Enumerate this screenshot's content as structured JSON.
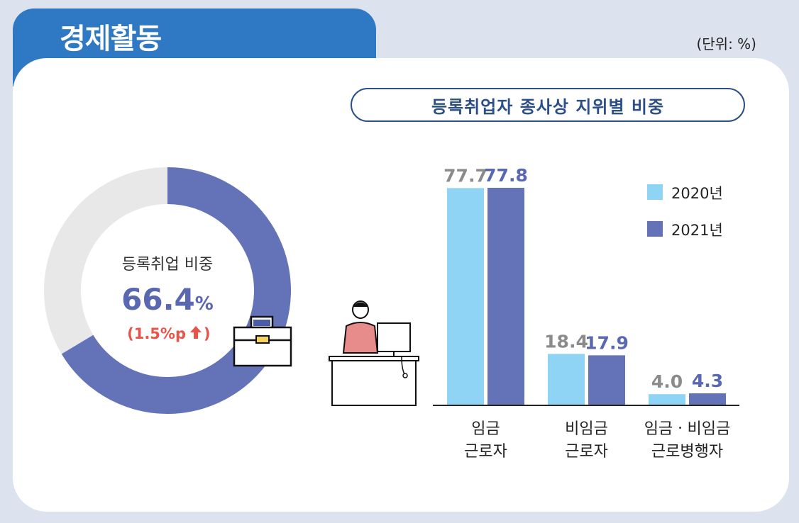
{
  "header": {
    "section_title": "경제활동",
    "unit": "(단위: %)"
  },
  "colors": {
    "accent_blue": "#2f78c3",
    "series_2020": "#8fd3f5",
    "series_2021": "#6473b7",
    "donut_track": "#e8e8e8",
    "highlight_red": "#e8534a",
    "title_navy": "#2b4f86"
  },
  "chart_data": [
    {
      "type": "pie",
      "label": "등록취업 비중",
      "value": 66.4,
      "value_text": "66.4",
      "value_unit": "%",
      "change_text": "(1.5%p",
      "change_direction": "up"
    },
    {
      "type": "bar",
      "title": "등록취업자 종사상 지위별 비중",
      "categories": [
        [
          "임금",
          "근로자"
        ],
        [
          "비임금",
          "근로자"
        ],
        [
          "임금ㆍ비임금",
          "근로병행자"
        ]
      ],
      "series": [
        {
          "name": "2020년",
          "values": [
            77.7,
            18.4,
            4.0
          ],
          "labels": [
            "77.7",
            "18.4",
            "4.0"
          ]
        },
        {
          "name": "2021년",
          "values": [
            77.8,
            17.9,
            4.3
          ],
          "labels": [
            "77.8",
            "17.9",
            "4.3"
          ]
        }
      ],
      "ylim": [
        0,
        80
      ],
      "legend_position": "top-right"
    }
  ]
}
